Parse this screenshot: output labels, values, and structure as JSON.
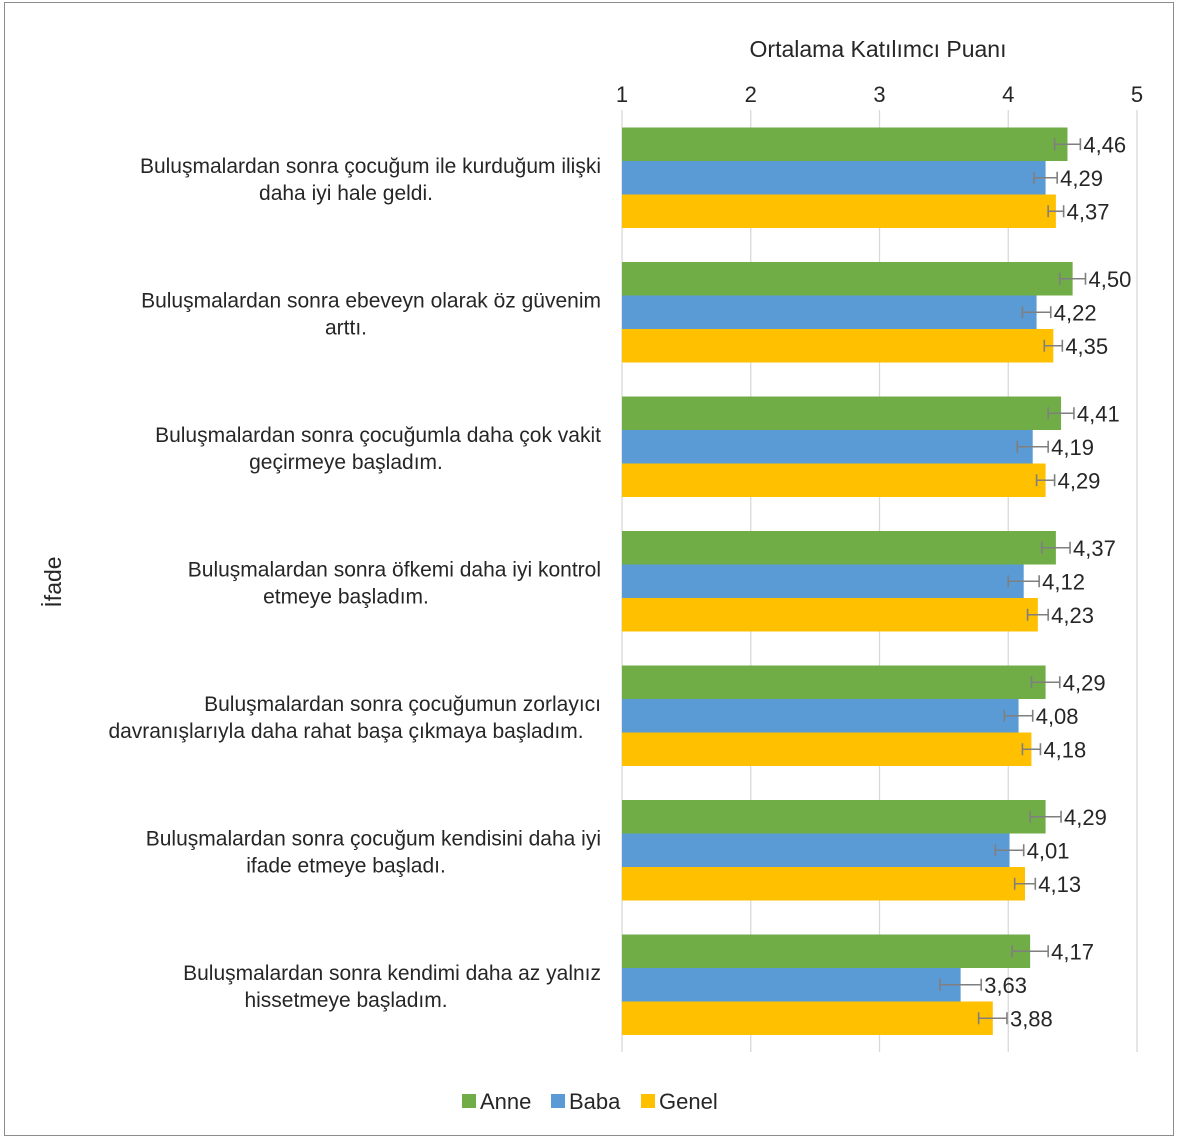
{
  "chart_data": {
    "type": "bar",
    "orientation": "horizontal",
    "xlabel": "Ortalama Katılımcı Puanı",
    "ylabel": "İfade",
    "xlim": [
      1,
      5
    ],
    "xticks": [
      "1",
      "2",
      "3",
      "4",
      "5"
    ],
    "grid": true,
    "legend_position": "bottom",
    "categories": [
      [
        "Buluşmalardan sonra çocuğum ile kurduğum ilişki",
        "daha iyi hale geldi."
      ],
      [
        "Buluşmalardan sonra ebeveyn olarak öz güvenim",
        "arttı."
      ],
      [
        "Buluşmalardan sonra çocuğumla daha çok vakit",
        "geçirmeye başladım."
      ],
      [
        "Buluşmalardan sonra öfkemi daha iyi kontrol",
        "etmeye başladım."
      ],
      [
        "Buluşmalardan sonra çocuğumun zorlayıcı",
        "davranışlarıyla daha rahat başa çıkmaya başladım."
      ],
      [
        "Buluşmalardan sonra çocuğum kendisini daha iyi",
        "ifade etmeye başladı."
      ],
      [
        "Buluşmalardan sonra kendimi daha az yalnız",
        "hissetmeye başladım."
      ]
    ],
    "series": [
      {
        "name": "Anne",
        "color": "#70ad47",
        "values": [
          4.46,
          4.5,
          4.41,
          4.37,
          4.29,
          4.29,
          4.17
        ],
        "labels": [
          "4,46",
          "4,50",
          "4,41",
          "4,37",
          "4,29",
          "4,29",
          "4,17"
        ],
        "error": [
          0.1,
          0.1,
          0.1,
          0.11,
          0.11,
          0.12,
          0.14
        ]
      },
      {
        "name": "Baba",
        "color": "#5b9bd5",
        "values": [
          4.29,
          4.22,
          4.19,
          4.12,
          4.08,
          4.01,
          3.63
        ],
        "labels": [
          "4,29",
          "4,22",
          "4,19",
          "4,12",
          "4,08",
          "4,01",
          "3,63"
        ],
        "error": [
          0.09,
          0.11,
          0.12,
          0.12,
          0.11,
          0.11,
          0.16
        ]
      },
      {
        "name": "Genel",
        "color": "#ffc000",
        "values": [
          4.37,
          4.35,
          4.29,
          4.23,
          4.18,
          4.13,
          3.88
        ],
        "labels": [
          "4,37",
          "4,35",
          "4,29",
          "4,23",
          "4,18",
          "4,13",
          "3,88"
        ],
        "error": [
          0.06,
          0.07,
          0.07,
          0.08,
          0.07,
          0.08,
          0.11
        ]
      }
    ]
  }
}
